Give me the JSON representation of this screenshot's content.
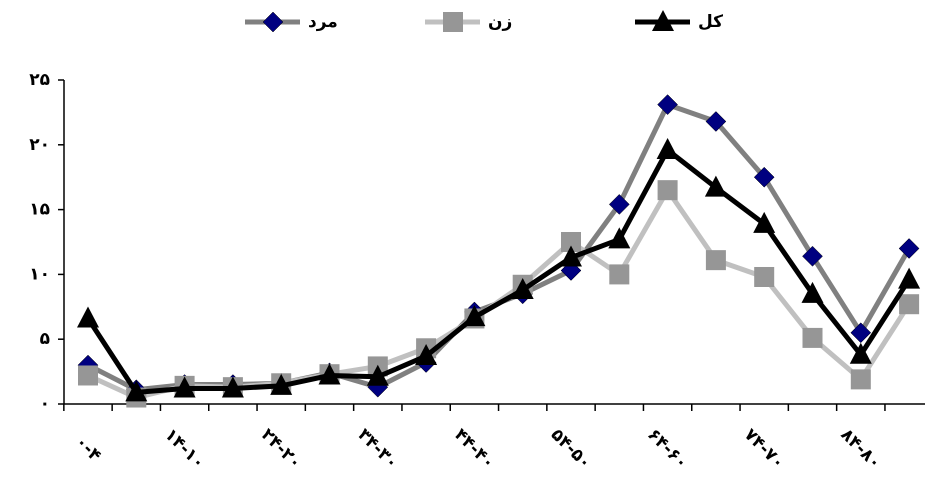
{
  "chart_data": {
    "type": "line",
    "categories": [
      "۰-۴",
      null,
      "۱۴-۱۰",
      null,
      "۲۴-۲۰",
      null,
      "۳۴-۳۰",
      null,
      "۴۴-۴۰",
      null,
      "۵۴-۵۰",
      null,
      "۶۴-۶۰",
      null,
      "۷۴-۷۰",
      null,
      "۸۴-۸۰",
      null
    ],
    "series": [
      {
        "name": "مرد",
        "color": "#808080",
        "marker_color": "#000080",
        "marker": "diamond",
        "values": [
          3.0,
          1.1,
          1.5,
          1.5,
          1.6,
          2.4,
          1.3,
          3.2,
          7.1,
          8.5,
          10.3,
          15.4,
          23.1,
          21.8,
          17.5,
          11.4,
          5.5,
          12.0
        ]
      },
      {
        "name": "زن",
        "color": "#c0c0c0",
        "marker_color": "#969696",
        "marker": "square",
        "values": [
          2.2,
          0.5,
          1.4,
          1.3,
          1.6,
          2.3,
          2.9,
          4.3,
          6.6,
          9.2,
          12.5,
          10.0,
          16.5,
          11.1,
          9.8,
          5.1,
          1.9,
          7.7
        ]
      },
      {
        "name": "کل",
        "color": "#000000",
        "marker_color": "#000000",
        "marker": "triangle",
        "values": [
          6.6,
          0.9,
          1.2,
          1.2,
          1.4,
          2.2,
          2.1,
          3.7,
          6.7,
          8.8,
          11.3,
          12.7,
          19.6,
          16.7,
          13.9,
          8.5,
          3.8,
          9.6
        ]
      }
    ],
    "ylim": [
      0,
      25
    ],
    "yticks": [
      {
        "value": 0,
        "label": "۰"
      },
      {
        "value": 5,
        "label": "۵"
      },
      {
        "value": 10,
        "label": "۱۰"
      },
      {
        "value": 15,
        "label": "۱۵"
      },
      {
        "value": 20,
        "label": "۲۰"
      },
      {
        "value": 25,
        "label": "۲۵"
      }
    ],
    "legend": "top"
  }
}
